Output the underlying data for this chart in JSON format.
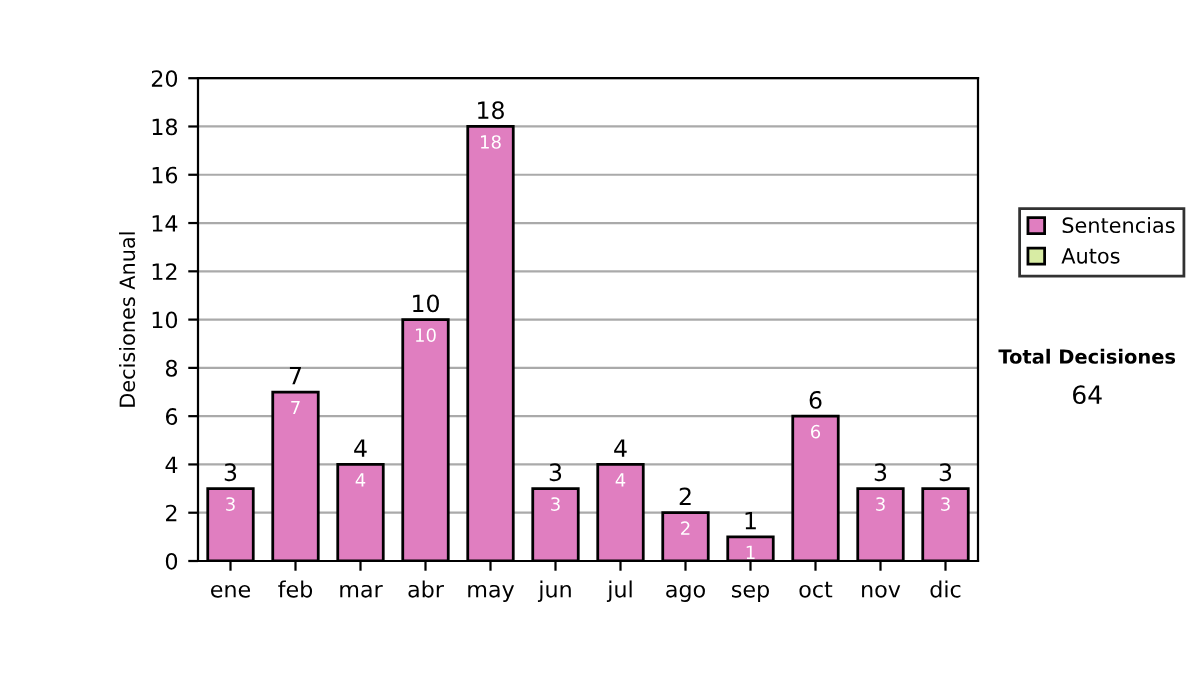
{
  "chart_data": {
    "type": "bar",
    "stacked": true,
    "ylabel": "Decisiones Anual",
    "categories": [
      "ene",
      "feb",
      "mar",
      "abr",
      "may",
      "jun",
      "jul",
      "ago",
      "sep",
      "oct",
      "nov",
      "dic"
    ],
    "series": [
      {
        "name": "Sentencias",
        "color": "#e07ec0",
        "values": [
          3,
          7,
          4,
          10,
          18,
          3,
          4,
          2,
          1,
          6,
          3,
          3
        ],
        "value_labels": [
          "3",
          "7",
          "4",
          "10",
          "18",
          "3",
          "4",
          "2",
          "1",
          "6",
          "3",
          "3"
        ]
      },
      {
        "name": "Autos",
        "color": "#d8eca4",
        "values": [
          0,
          0,
          0,
          0,
          0,
          0,
          0,
          0,
          0,
          0,
          0,
          0
        ]
      }
    ],
    "totals": [
      "3",
      "7",
      "4",
      "10",
      "18",
      "3",
      "4",
      "2",
      "1",
      "6",
      "3",
      "3"
    ],
    "ylim": [
      0,
      20
    ],
    "yticks": [
      0,
      2,
      4,
      6,
      8,
      10,
      12,
      14,
      16,
      18,
      20
    ],
    "grid": "y",
    "legend": "right",
    "annotations": [
      "Total Decisiones",
      "64"
    ]
  }
}
